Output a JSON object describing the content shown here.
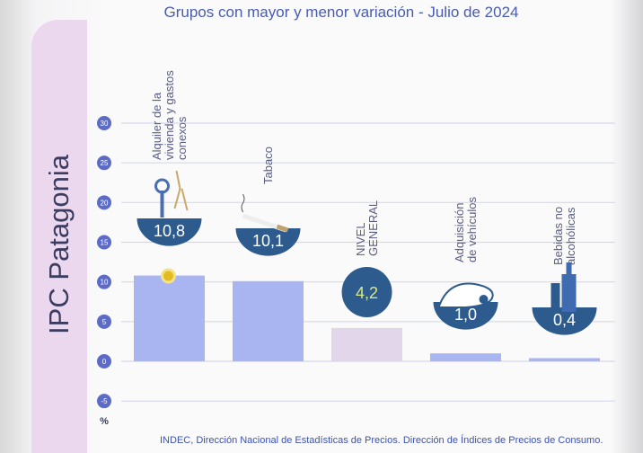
{
  "title": "Grupos con mayor y menor variación - Julio de 2024",
  "panel_title": "IPC Patagonia",
  "footer": "INDEC, Dirección Nacional de Estadísticas de Precios. Dirección de Índices de Precios de Consumo.",
  "chart_data": {
    "type": "bar",
    "title": "Grupos con mayor y menor variación - Julio de 2024",
    "ylabel": "%",
    "ylim": [
      -5,
      30
    ],
    "yticks": [
      "30",
      "25",
      "20",
      "15",
      "10",
      "5",
      "0",
      "-5"
    ],
    "grid": true,
    "categories": [
      [
        "Alquiler de la",
        "vivienda y gastos",
        "conexos"
      ],
      [
        "Tabaco"
      ],
      [
        "NIVEL",
        "GENERAL"
      ],
      [
        "Adquisición",
        "de vehículos"
      ],
      [
        "Bebidas no",
        "alcohólicas"
      ]
    ],
    "values": [
      10.8,
      10.1,
      4.2,
      1.0,
      0.4
    ],
    "value_labels": [
      "10,8",
      "10,1",
      "4,2",
      "1,0",
      "0,4"
    ],
    "icons": [
      "keys-icon",
      "cigarette-icon",
      "",
      "car-icon",
      "bottles-icon"
    ],
    "colors": {
      "bar": "#a9b5f0",
      "general_bar": "#e2d6ea",
      "badge": "#2e5b8e",
      "tick": "#5b6bc6",
      "grid": "#d6d8ee"
    }
  }
}
